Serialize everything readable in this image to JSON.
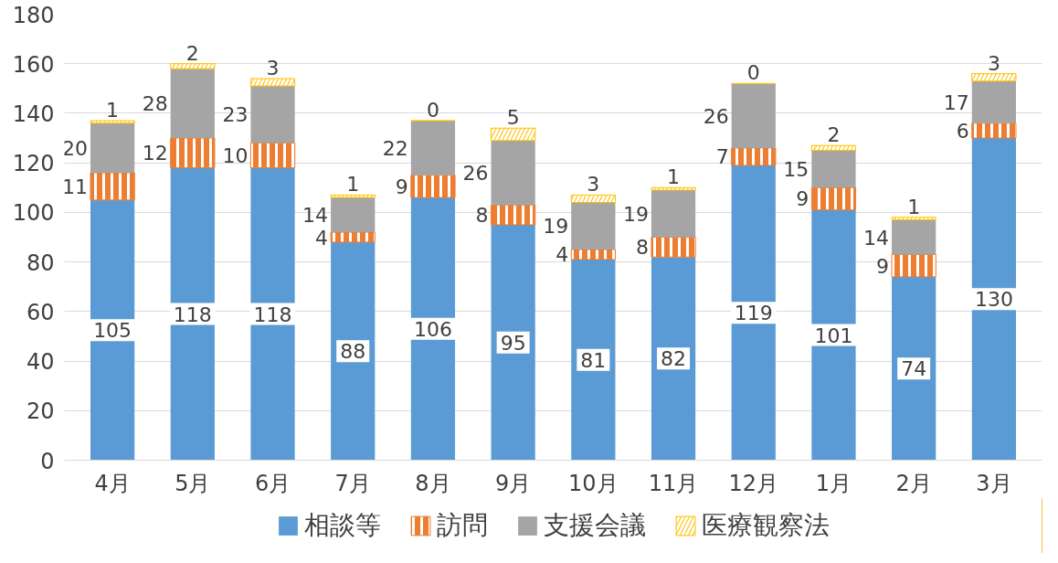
{
  "chart_data": {
    "type": "bar",
    "stacked": true,
    "categories": [
      "4月",
      "5月",
      "6月",
      "7月",
      "8月",
      "9月",
      "10月",
      "11月",
      "12月",
      "1月",
      "2月",
      "3月"
    ],
    "series": [
      {
        "name": "相談等",
        "color": "#5b9bd5",
        "values": [
          105,
          118,
          118,
          88,
          106,
          95,
          81,
          82,
          119,
          101,
          74,
          130
        ]
      },
      {
        "name": "訪問",
        "color": "#ed7d31",
        "values": [
          11,
          12,
          10,
          4,
          9,
          8,
          4,
          8,
          7,
          9,
          9,
          6
        ]
      },
      {
        "name": "支援会議",
        "color": "#a5a5a5",
        "values": [
          20,
          28,
          23,
          14,
          22,
          26,
          19,
          19,
          26,
          15,
          14,
          17
        ]
      },
      {
        "name": "医療観察法",
        "color": "#ffc000",
        "values": [
          1,
          2,
          3,
          1,
          0,
          5,
          3,
          1,
          0,
          2,
          1,
          3
        ]
      }
    ],
    "ylim": [
      0,
      180
    ],
    "yticks": [
      0,
      20,
      40,
      60,
      80,
      100,
      120,
      140,
      160,
      180
    ],
    "grid": "y",
    "legend": "bottom",
    "data_labels": true
  }
}
